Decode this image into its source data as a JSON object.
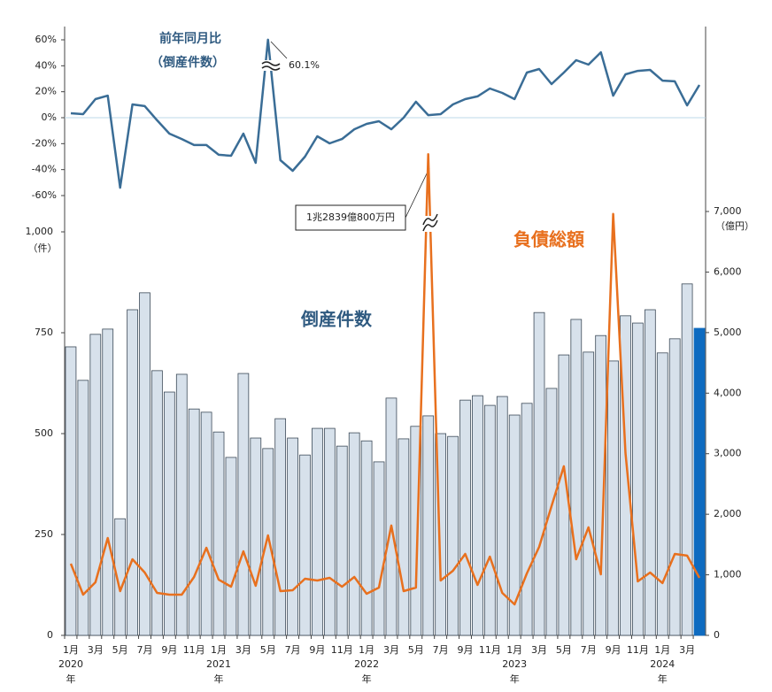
{
  "chart_data": [
    {
      "type": "line",
      "title": "前年同月比",
      "subtitle": "（倒産件数）",
      "color": "#3a6d96",
      "values": [
        3.4,
        2.7,
        14.3,
        17,
        -53.9,
        10.2,
        8.9,
        -2,
        -12.3,
        -16.4,
        -21.1,
        -21.1,
        -28.6,
        -29.3,
        -12.3,
        -34.8,
        60.1,
        -32.7,
        -40.9,
        -30,
        -14.3,
        -19.8,
        -16.4,
        -8.9,
        -4.8,
        -2.7,
        -8.9,
        0,
        12.3,
        2,
        2.7,
        10.2,
        14.3,
        16.4,
        22.5,
        19.1,
        14.3,
        34.8,
        37.5,
        25.9,
        34.8,
        44.3,
        40.9,
        50.4,
        17,
        33.4,
        36.1,
        36.8,
        28.6,
        28,
        9.5,
        25.2
      ],
      "annotation": "60.1%",
      "ylim": [
        -60,
        60
      ],
      "yticks": [
        {
          "value": -60,
          "label": "-60%"
        },
        {
          "value": -40,
          "label": "-40%"
        },
        {
          "value": -20,
          "label": "-20%"
        },
        {
          "value": 0,
          "label": "0%"
        },
        {
          "value": 20,
          "label": "20%"
        },
        {
          "value": 40,
          "label": "40%"
        },
        {
          "value": 60,
          "label": "60%"
        }
      ]
    },
    {
      "type": "combo",
      "categories": [
        "1月",
        null,
        "3月",
        null,
        "5月",
        null,
        "7月",
        null,
        "9月",
        null,
        "11月",
        null,
        "1月",
        null,
        "3月",
        null,
        "5月",
        null,
        "7月",
        null,
        "9月",
        null,
        "11月",
        null,
        "1月",
        null,
        "3月",
        null,
        "5月",
        null,
        "7月",
        null,
        "9月",
        null,
        "11月",
        null,
        "1月",
        null,
        "3月",
        null,
        "5月",
        null,
        "7月",
        null,
        "9月",
        null,
        "11月",
        null,
        "1月",
        null,
        "3月",
        null
      ],
      "years": [
        {
          "year": "2020",
          "suffix": "年"
        },
        {
          "year": "2021",
          "suffix": "年"
        },
        {
          "year": "2022",
          "suffix": "年"
        },
        {
          "year": "2023",
          "suffix": "年"
        },
        {
          "year": "2024",
          "suffix": "年"
        }
      ],
      "series": [
        {
          "name": "倒産件数",
          "type": "bar",
          "color": "#d7e1eb",
          "name_color": "#2f5a80",
          "highlight": {
            "index": 51,
            "color": "#0e6bc0"
          },
          "values": [
            715,
            632,
            746,
            759,
            289,
            807,
            849,
            656,
            603,
            647,
            561,
            553,
            504,
            441,
            649,
            489,
            463,
            537,
            489,
            447,
            513,
            513,
            469,
            502,
            482,
            430,
            588,
            487,
            518,
            544,
            500,
            493,
            583,
            594,
            570,
            592,
            546,
            575,
            800,
            612,
            695,
            783,
            702,
            743,
            680,
            792,
            774,
            807,
            700,
            735,
            871,
            761
          ]
        },
        {
          "name": "負債総額",
          "type": "line",
          "axis": "y2",
          "color": "#e8701e",
          "values": [
            1184,
            672,
            877,
            1608,
            731,
            1257,
            1038,
            702,
            672,
            672,
            965,
            1447,
            921,
            804,
            1389,
            819,
            1652,
            731,
            746,
            936,
            906,
            950,
            804,
            965,
            687,
            789,
            1813,
            731,
            789,
            12839.08,
            906,
            1067,
            1345,
            833,
            1301,
            702,
            512,
            1023,
            1462,
            2135,
            2792,
            1257,
            1784,
            1009,
            6959,
            3012,
            892,
            1038,
            863,
            1345,
            1316,
            950
          ]
        }
      ],
      "annotation": "1兆2839億800万円",
      "ylabel": "（件）",
      "y2label": "（億円）",
      "ylim": [
        0,
        1000
      ],
      "yticks": [
        0,
        250,
        500,
        750,
        {
          "value": 1000,
          "label": "1,000"
        }
      ],
      "y2lim": [
        0,
        7000
      ],
      "y2ticks": [
        0,
        {
          "value": 1000,
          "label": "1,000"
        },
        {
          "value": 2000,
          "label": "2,000"
        },
        {
          "value": 3000,
          "label": "3,000"
        },
        {
          "value": 4000,
          "label": "4,000"
        },
        {
          "value": 5000,
          "label": "5,000"
        },
        {
          "value": 6000,
          "label": "6,000"
        },
        {
          "value": 7000,
          "label": "7,000"
        }
      ]
    }
  ]
}
